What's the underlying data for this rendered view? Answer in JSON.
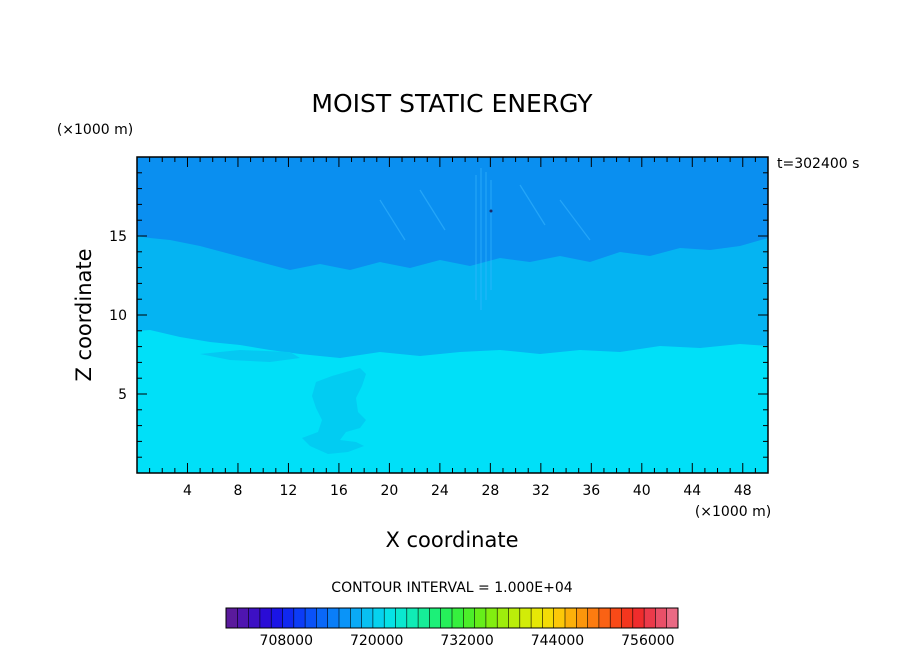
{
  "chart_data": {
    "type": "heatmap",
    "title": "MOIST STATIC ENERGY",
    "xlabel": "X coordinate",
    "ylabel": "Z coordinate",
    "x_unit": "(×1000 m)",
    "y_unit": "(×1000 m)",
    "time_label": "t=302400 s",
    "contour_interval_label": "CONTOUR INTERVAL = 1.000E+04",
    "xlim": [
      0,
      50
    ],
    "ylim": [
      0,
      20
    ],
    "x_ticks": [
      "4",
      "8",
      "12",
      "16",
      "20",
      "24",
      "28",
      "32",
      "36",
      "40",
      "44",
      "48"
    ],
    "y_ticks": [
      "5",
      "10",
      "15"
    ],
    "colorbar": {
      "range": [
        700000,
        760000
      ],
      "tick_labels": [
        "708000",
        "720000",
        "732000",
        "744000",
        "756000"
      ],
      "colors": [
        "#5a1a9c",
        "#4f15b0",
        "#3d10c4",
        "#2a0cd6",
        "#1a14e6",
        "#1028f0",
        "#0c3cf6",
        "#0a52f8",
        "#0a68f8",
        "#0a7ef8",
        "#0a94f8",
        "#0aaaf6",
        "#08c0f2",
        "#06d2ee",
        "#06e2e6",
        "#0ae8d0",
        "#10ecb6",
        "#16ee98",
        "#1cf078",
        "#26f05a",
        "#36f03e",
        "#4cee2a",
        "#66ee1a",
        "#82ee10",
        "#9eee0c",
        "#baee0a",
        "#d2ec08",
        "#e6e806",
        "#f4dc06",
        "#fcc808",
        "#fcb00a",
        "#fc960c",
        "#fc7c10",
        "#fa6214",
        "#f84a18",
        "#f4361e",
        "#f02c2c",
        "#ec3a4a",
        "#ea5068",
        "#ea6a84"
      ]
    },
    "bands": [
      {
        "name": "upper",
        "z_range": [
          13,
          20
        ],
        "color": "#0a8ff0"
      },
      {
        "name": "middle",
        "z_range": [
          8,
          13
        ],
        "color": "#05b4f2"
      },
      {
        "name": "lower",
        "z_range": [
          0,
          8
        ],
        "color": "#00e0f8"
      },
      {
        "name": "blob",
        "z_range": [
          1.2,
          6.5
        ],
        "color": "#02ccf2"
      }
    ]
  }
}
